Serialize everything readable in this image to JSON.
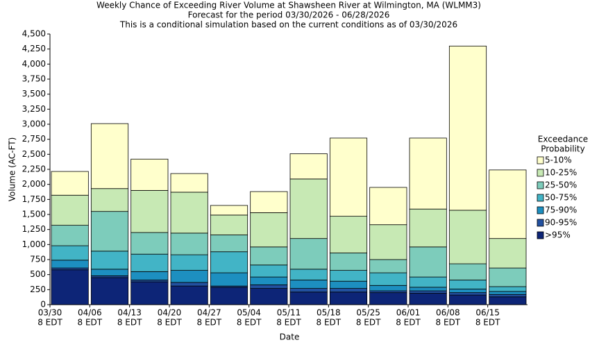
{
  "chart_data": {
    "type": "stacked_bar",
    "title": "Weekly Chance of Exceeding River Volume at Shawsheen River at Wilmington, MA (WLMM3)",
    "subtitle": "Forecast for the period 03/30/2026 - 06/28/2026",
    "note": "This is a conditional simulation based on the current conditions as of 03/30/2026",
    "x_label": "Date",
    "y_label": "Volume (AC-FT)",
    "legend_title": [
      "Exceedance",
      "Probability"
    ],
    "legend_position": "right",
    "categories": [
      [
        "03/30",
        "8 EDT"
      ],
      [
        "04/06",
        "8 EDT"
      ],
      [
        "04/13",
        "8 EDT"
      ],
      [
        "04/20",
        "8 EDT"
      ],
      [
        "04/27",
        "8 EDT"
      ],
      [
        "05/04",
        "8 EDT"
      ],
      [
        "05/11",
        "8 EDT"
      ],
      [
        "05/18",
        "8 EDT"
      ],
      [
        "05/25",
        "8 EDT"
      ],
      [
        "06/01",
        "8 EDT"
      ],
      [
        "06/08",
        "8 EDT"
      ],
      [
        "06/15",
        "8 EDT"
      ]
    ],
    "series": [
      {
        "name": ">95%",
        "color": "#0d2577",
        "values": [
          580,
          450,
          380,
          310,
          290,
          270,
          210,
          210,
          200,
          190,
          160,
          130
        ]
      },
      {
        "name": "90-95%",
        "color": "#2251a0",
        "values": [
          30,
          30,
          30,
          60,
          20,
          60,
          60,
          60,
          30,
          40,
          40,
          40
        ]
      },
      {
        "name": "75-90%",
        "color": "#1d8fc0",
        "values": [
          130,
          110,
          140,
          200,
          220,
          130,
          140,
          120,
          90,
          60,
          60,
          50
        ]
      },
      {
        "name": "50-75%",
        "color": "#42b4c6",
        "values": [
          240,
          300,
          290,
          260,
          350,
          200,
          180,
          180,
          210,
          170,
          150,
          80
        ]
      },
      {
        "name": "25-50%",
        "color": "#7dccbb",
        "values": [
          340,
          660,
          360,
          360,
          280,
          300,
          510,
          290,
          220,
          500,
          270,
          310
        ]
      },
      {
        "name": "10-25%",
        "color": "#c7e9b4",
        "values": [
          500,
          380,
          700,
          680,
          330,
          570,
          990,
          610,
          580,
          630,
          890,
          490
        ]
      },
      {
        "name": "5-10%",
        "color": "#ffffcc",
        "values": [
          395,
          1080,
          520,
          310,
          160,
          350,
          420,
          1300,
          620,
          1180,
          2730,
          1140
        ]
      }
    ],
    "ylim": [
      0,
      4500
    ],
    "yticks": [
      0,
      250,
      500,
      750,
      {
        "value": 1000,
        "label": "1,000"
      },
      {
        "value": 1250,
        "label": "1,250"
      },
      {
        "value": 1500,
        "label": "1,500"
      },
      {
        "value": 1750,
        "label": "1,750"
      },
      {
        "value": 2000,
        "label": "2,000"
      },
      {
        "value": 2250,
        "label": "2,250"
      },
      {
        "value": 2500,
        "label": "2,500"
      },
      {
        "value": 2750,
        "label": "2,750"
      },
      {
        "value": 3000,
        "label": "3,000"
      },
      {
        "value": 3250,
        "label": "3,250"
      },
      {
        "value": 3500,
        "label": "3,500"
      },
      {
        "value": 3750,
        "label": "3,750"
      },
      {
        "value": 4000,
        "label": "4,000"
      },
      {
        "value": 4250,
        "label": "4,250"
      },
      {
        "value": 4500,
        "label": "4,500"
      }
    ],
    "grid": false
  }
}
